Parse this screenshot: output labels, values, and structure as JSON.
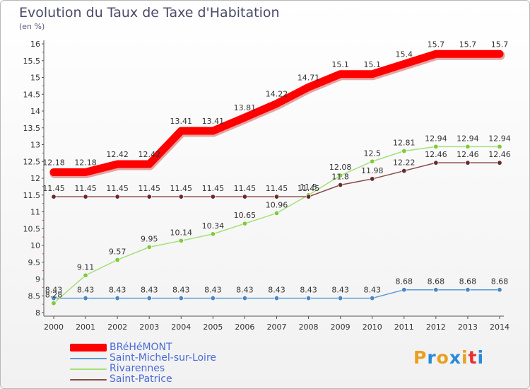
{
  "header": {
    "title": "Evolution du Taux de Taxe d'Habitation",
    "unit": "(en %)"
  },
  "logo": {
    "text": "Proxiti",
    "colors": [
      "#e8a020",
      "#2a8ad8",
      "#e8a020",
      "#2a8ad8",
      "#e8a020",
      "#e83030",
      "#2a8ad8"
    ]
  },
  "chart_data": {
    "type": "line",
    "title": "Evolution du Taux de Taxe d'Habitation",
    "ylabel": "(en %)",
    "xlabel": "",
    "x": [
      "2000",
      "2001",
      "2002",
      "2003",
      "2004",
      "2005",
      "2006",
      "2007",
      "2008",
      "2009",
      "2010",
      "2011",
      "2012",
      "2013",
      "2014"
    ],
    "ylim": [
      8,
      16
    ],
    "yticks": [
      "8",
      "8.5",
      "9",
      "9.5",
      "10",
      "10.5",
      "11",
      "11.5",
      "12",
      "12.5",
      "13",
      "13.5",
      "14",
      "14.5",
      "15",
      "15.5",
      "16"
    ],
    "grid": false,
    "legend_position": "bottom-left",
    "series": [
      {
        "name": "BRéHéMONT",
        "color": "#ff0000",
        "thick": true,
        "values": [
          12.18,
          12.18,
          12.42,
          12.42,
          13.41,
          13.41,
          13.81,
          14.22,
          14.71,
          15.1,
          15.1,
          15.4,
          15.7,
          15.7,
          15.7
        ],
        "labels": [
          "12.18",
          "12.18",
          "12.42",
          "12.42",
          "13.41",
          "13.41",
          "13.81",
          "14.22",
          "14.71",
          "15.1",
          "15.1",
          "15.4",
          "15.7",
          "15.7",
          "15.7"
        ]
      },
      {
        "name": "Saint-Michel-sur-Loire",
        "color": "#5b9bd5",
        "marker": "#4a86c5",
        "thick": false,
        "values": [
          8.43,
          8.43,
          8.43,
          8.43,
          8.43,
          8.43,
          8.43,
          8.43,
          8.43,
          8.43,
          8.43,
          8.68,
          8.68,
          8.68,
          8.68
        ],
        "labels": [
          "8.43",
          "8.43",
          "8.43",
          "8.43",
          "8.43",
          "8.43",
          "8.43",
          "8.43",
          "8.43",
          "8.43",
          "8.43",
          "8.68",
          "8.68",
          "8.68",
          "8.68"
        ]
      },
      {
        "name": "Rivarennes",
        "color": "#a6e07a",
        "marker": "#7ccb3c",
        "thick": false,
        "values": [
          8.28,
          9.11,
          9.57,
          9.95,
          10.14,
          10.34,
          10.65,
          10.96,
          11.5,
          12.08,
          12.5,
          12.81,
          12.94,
          12.94,
          12.94
        ],
        "labels": [
          "8.28",
          "9.11",
          "9.57",
          "9.95",
          "10.14",
          "10.34",
          "10.65",
          "10.96",
          "11.5",
          "12.08",
          "12.5",
          "12.81",
          "12.94",
          "12.94",
          "12.94"
        ]
      },
      {
        "name": "Saint-Patrice",
        "color": "#8a4a4a",
        "marker": "#6a2a2a",
        "thick": false,
        "values": [
          11.45,
          11.45,
          11.45,
          11.45,
          11.45,
          11.45,
          11.45,
          11.45,
          11.45,
          11.8,
          11.98,
          12.22,
          12.46,
          12.46,
          12.46
        ],
        "labels": [
          "11.45",
          "11.45",
          "11.45",
          "11.45",
          "11.45",
          "11.45",
          "11.45",
          "11.45",
          "11.45",
          "11.8",
          "11.98",
          "12.22",
          "12.46",
          "12.46",
          "12.46"
        ]
      }
    ]
  }
}
